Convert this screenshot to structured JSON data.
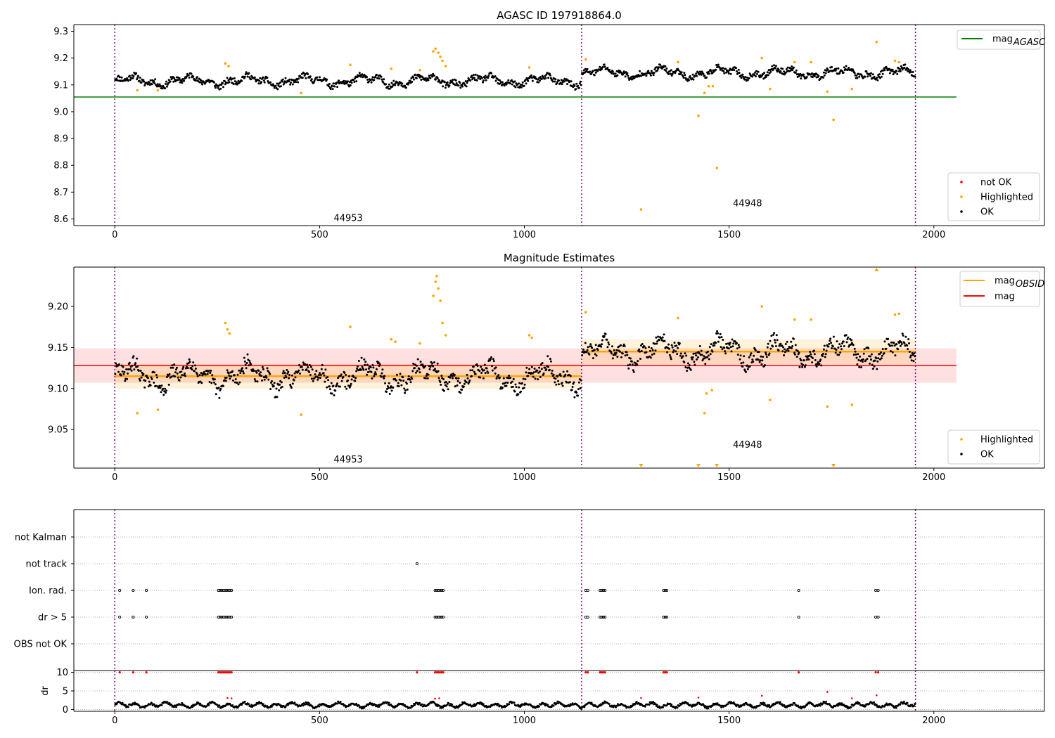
{
  "chart_data": [
    {
      "type": "scatter",
      "title": "AGASC ID 197918864.0",
      "xlabel": "",
      "ylabel": "",
      "xlim": [
        -100,
        2270
      ],
      "ylim": [
        8.575,
        9.325
      ],
      "xticks": [
        0,
        500,
        1000,
        1500,
        2000
      ],
      "yticks": [
        8.6,
        8.7,
        8.8,
        8.9,
        9.0,
        9.1,
        9.2,
        9.3
      ],
      "ytick_labels": [
        "8.6",
        "8.7",
        "8.8",
        "8.9",
        "9.0",
        "9.1",
        "9.2",
        "9.3"
      ],
      "obs_boundaries": [
        0,
        1140,
        1955
      ],
      "obs_labels": [
        {
          "text": "44953",
          "x": 570,
          "y": 8.605
        },
        {
          "text": "44948",
          "x": 1545,
          "y": 8.66
        }
      ],
      "hlines": [
        {
          "name": "mag_AGASC",
          "y": 9.055,
          "x": [
            -100,
            2055
          ],
          "color": "#008000"
        }
      ],
      "ok_segments": [
        {
          "x0": 0,
          "x1": 1140,
          "base": 9.115,
          "amp": 0.025,
          "color": "#000000"
        },
        {
          "x0": 1140,
          "x1": 1955,
          "base": 9.145,
          "amp": 0.025,
          "color": "#000000"
        }
      ],
      "highlighted_points": [
        [
          55,
          9.08
        ],
        [
          105,
          9.08
        ],
        [
          270,
          9.18
        ],
        [
          278,
          9.17
        ],
        [
          455,
          9.07
        ],
        [
          575,
          9.175
        ],
        [
          675,
          9.16
        ],
        [
          745,
          9.155
        ],
        [
          778,
          9.225
        ],
        [
          783,
          9.235
        ],
        [
          790,
          9.22
        ],
        [
          795,
          9.205
        ],
        [
          800,
          9.19
        ],
        [
          808,
          9.17
        ],
        [
          1012,
          9.165
        ],
        [
          1150,
          9.195
        ],
        [
          1285,
          8.635
        ],
        [
          1375,
          9.185
        ],
        [
          1425,
          8.985
        ],
        [
          1440,
          9.07
        ],
        [
          1450,
          9.095
        ],
        [
          1460,
          9.095
        ],
        [
          1470,
          8.79
        ],
        [
          1580,
          9.2
        ],
        [
          1600,
          9.085
        ],
        [
          1660,
          9.185
        ],
        [
          1700,
          9.185
        ],
        [
          1740,
          9.075
        ],
        [
          1755,
          8.97
        ],
        [
          1800,
          9.085
        ],
        [
          1860,
          9.26
        ],
        [
          1905,
          9.19
        ],
        [
          1915,
          9.185
        ]
      ],
      "legends": [
        {
          "position": "top-right",
          "entries": [
            {
              "label": "mag",
              "sub": "AGASC",
              "kind": "line",
              "color": "#008000"
            }
          ]
        },
        {
          "position": "lower-right",
          "entries": [
            {
              "label": "not OK",
              "kind": "dot",
              "color": "#ff0000"
            },
            {
              "label": "Highlighted",
              "kind": "dot",
              "color": "#ffa500"
            },
            {
              "label": "OK",
              "kind": "dot",
              "color": "#000000"
            }
          ]
        }
      ]
    },
    {
      "type": "scatter",
      "title": "Magnitude Estimates",
      "xlabel": "",
      "ylabel": "",
      "xlim": [
        -100,
        2270
      ],
      "ylim": [
        9.003,
        9.248
      ],
      "xticks": [
        0,
        500,
        1000,
        1500,
        2000
      ],
      "yticks": [
        9.05,
        9.1,
        9.15,
        9.2
      ],
      "ytick_labels": [
        "9.05",
        "9.10",
        "9.15",
        "9.20"
      ],
      "obs_boundaries": [
        0,
        1140,
        1955
      ],
      "obs_labels": [
        {
          "text": "44953",
          "x": 570,
          "y": 9.014
        },
        {
          "text": "44948",
          "x": 1545,
          "y": 9.032
        }
      ],
      "mag_band": {
        "y": 9.128,
        "lo": 9.107,
        "hi": 9.149,
        "x": [
          -100,
          2055
        ],
        "color": "#ff0000"
      },
      "obsid_levels": [
        {
          "x0": 0,
          "x1": 1140,
          "y": 9.115,
          "lo": 9.1,
          "hi": 9.13
        },
        {
          "x0": 1140,
          "x1": 1955,
          "y": 9.145,
          "lo": 9.13,
          "hi": 9.16
        }
      ],
      "ok_segments": [
        {
          "x0": 0,
          "x1": 1140,
          "base": 9.115,
          "amp": 0.02,
          "color": "#000000"
        },
        {
          "x0": 1140,
          "x1": 1955,
          "base": 9.145,
          "amp": 0.02,
          "color": "#000000"
        }
      ],
      "highlighted_points": [
        [
          55,
          9.07
        ],
        [
          105,
          9.074
        ],
        [
          270,
          9.18
        ],
        [
          275,
          9.172
        ],
        [
          280,
          9.167
        ],
        [
          455,
          9.068
        ],
        [
          575,
          9.175
        ],
        [
          675,
          9.16
        ],
        [
          685,
          9.157
        ],
        [
          745,
          9.155
        ],
        [
          778,
          9.213
        ],
        [
          783,
          9.23
        ],
        [
          786,
          9.237
        ],
        [
          790,
          9.222
        ],
        [
          795,
          9.207
        ],
        [
          800,
          9.18
        ],
        [
          808,
          9.165
        ],
        [
          1012,
          9.165
        ],
        [
          1018,
          9.162
        ],
        [
          1150,
          9.193
        ],
        [
          1375,
          9.186
        ],
        [
          1445,
          9.094
        ],
        [
          1458,
          9.098
        ],
        [
          1440,
          9.07
        ],
        [
          1580,
          9.2
        ],
        [
          1600,
          9.086
        ],
        [
          1660,
          9.184
        ],
        [
          1700,
          9.184
        ],
        [
          1740,
          9.078
        ],
        [
          1800,
          9.08
        ],
        [
          1905,
          9.19
        ],
        [
          1915,
          9.191
        ]
      ],
      "offscale_markers": [
        {
          "x": 1285,
          "dir": "down"
        },
        {
          "x": 1425,
          "dir": "down"
        },
        {
          "x": 1470,
          "dir": "down"
        },
        {
          "x": 1755,
          "dir": "down"
        },
        {
          "x": 1860,
          "dir": "up"
        }
      ],
      "legends": [
        {
          "position": "top-right",
          "entries": [
            {
              "label": "mag",
              "sub": "OBSID",
              "kind": "line",
              "color": "#ffa500"
            },
            {
              "label": "mag",
              "sub": "",
              "kind": "line",
              "color": "#ff0000"
            }
          ]
        },
        {
          "position": "lower-right",
          "entries": [
            {
              "label": "Highlighted",
              "kind": "dot",
              "color": "#ffa500"
            },
            {
              "label": "OK",
              "kind": "dot",
              "color": "#000000"
            }
          ]
        }
      ]
    },
    {
      "type": "scatter",
      "title": "",
      "xlabel": "",
      "ylabel": "",
      "xlim": [
        -100,
        2270
      ],
      "xticks": [
        0,
        500,
        1000,
        1500,
        2000
      ],
      "obs_boundaries": [
        0,
        1140,
        1955
      ],
      "flag_rows": [
        "not Kalman",
        "not track",
        "Ion. rad.",
        "dr > 5",
        "OBS not OK"
      ],
      "flag_points": {
        "not track": [
          738
        ],
        "Ion. rad.": [
          12,
          45,
          77,
          253,
          257,
          261,
          265,
          269,
          273,
          277,
          281,
          285,
          782,
          786,
          790,
          794,
          798,
          802,
          1150,
          1155,
          1185,
          1189,
          1193,
          1197,
          1340,
          1344,
          1348,
          1670,
          1858,
          1864
        ],
        "dr > 5": [
          12,
          45,
          77,
          253,
          257,
          261,
          265,
          269,
          273,
          277,
          281,
          285,
          782,
          786,
          790,
          794,
          798,
          802,
          1150,
          1155,
          1185,
          1189,
          1193,
          1197,
          1340,
          1344,
          1348,
          1670,
          1858,
          1864
        ]
      }
    },
    {
      "type": "scatter",
      "title": "",
      "xlabel": "",
      "ylabel": "dr",
      "xlim": [
        -100,
        2270
      ],
      "ylim": [
        -0.5,
        10.5
      ],
      "xticks": [
        0,
        500,
        1000,
        1500,
        2000
      ],
      "yticks": [
        0,
        5,
        10
      ],
      "ytick_labels": [
        "0",
        "5",
        "10"
      ],
      "obs_boundaries": [
        0,
        1140,
        1955
      ],
      "dr_base": {
        "x0": 0,
        "x1": 1955,
        "base": 1.2,
        "amp": 0.8
      },
      "dr_clipped_x": [
        12,
        45,
        77,
        253,
        257,
        261,
        265,
        269,
        273,
        277,
        281,
        285,
        738,
        782,
        786,
        790,
        794,
        798,
        802,
        1150,
        1155,
        1185,
        1189,
        1193,
        1197,
        1340,
        1344,
        1348,
        1670,
        1858,
        1864
      ],
      "dr_red_points": [
        [
          275,
          3.1
        ],
        [
          285,
          3.0
        ],
        [
          782,
          2.9
        ],
        [
          792,
          3.0
        ],
        [
          1285,
          3.1
        ],
        [
          1425,
          3.2
        ],
        [
          1580,
          3.7
        ],
        [
          1740,
          4.7
        ],
        [
          1800,
          3.0
        ],
        [
          1860,
          3.8
        ]
      ]
    }
  ]
}
